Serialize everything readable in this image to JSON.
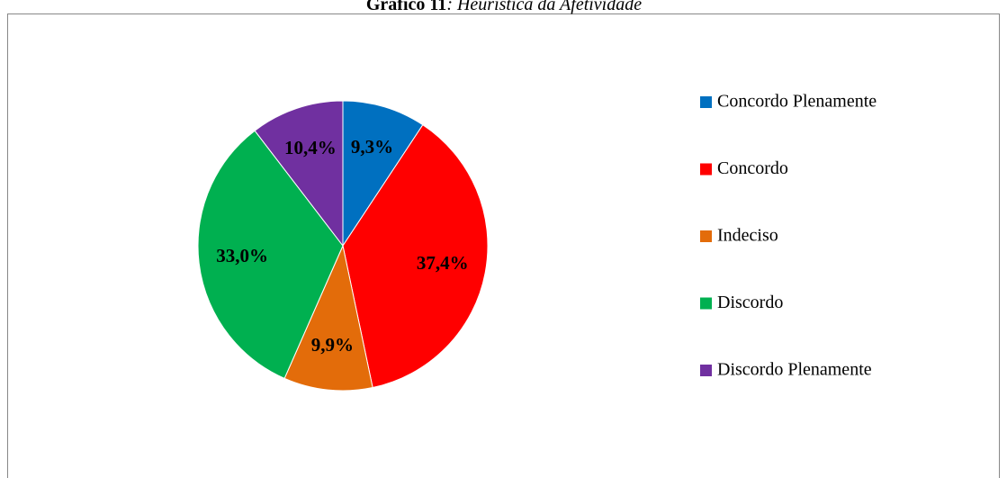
{
  "chart_data": {
    "type": "pie",
    "title_number": "Gráfico 11",
    "title": ": Heurística da Afetividade",
    "categories": [
      "Concordo Plenamente",
      "Concordo",
      "Indeciso",
      "Discordo",
      "Discordo Plenamente"
    ],
    "values": [
      9.3,
      37.4,
      9.9,
      33.0,
      10.4
    ],
    "value_labels": [
      "9,3%",
      "37,4%",
      "9,9%",
      "33,0%",
      "10,4%"
    ],
    "colors": [
      "#0070c0",
      "#ff0000",
      "#e36c0a",
      "#00b050",
      "#7030a0"
    ],
    "legend": "right"
  }
}
